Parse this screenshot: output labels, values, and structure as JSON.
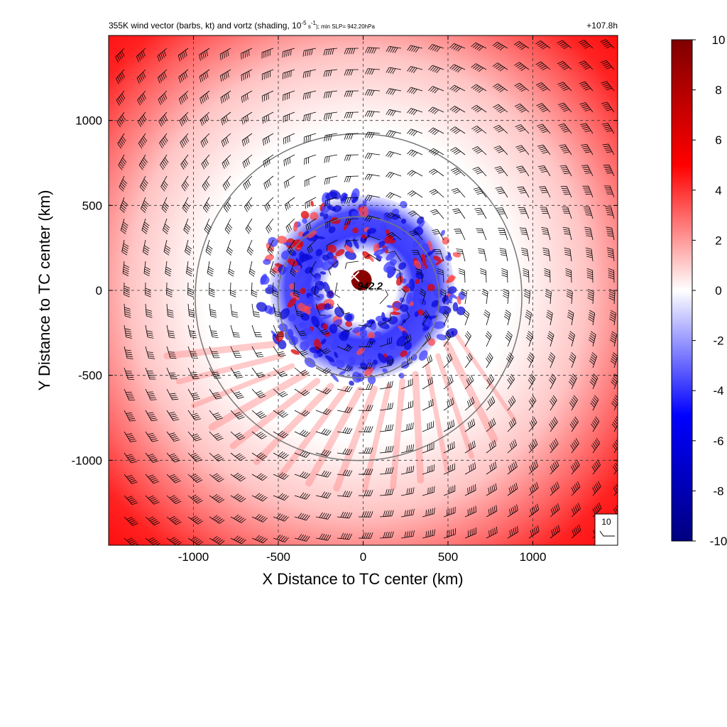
{
  "chart_data": {
    "type": "heatmap",
    "title_parts": {
      "prefix": "355K wind vector (barbs, kt) and vortz (shading, 10",
      "exp": "-5",
      "mid": " s",
      "exp2": "-1",
      "suffix": "); min SLP= 942.20hPa"
    },
    "time_label": "+107.8h",
    "xlabel": "X Distance to TC center (km)",
    "ylabel": "Y Distance to TC center (km)",
    "xlim": [
      -1500,
      1500
    ],
    "ylim": [
      -1500,
      1500
    ],
    "xticks": [
      {
        "value": -1000,
        "label": "-1000"
      },
      {
        "value": -500,
        "label": "-500"
      },
      {
        "value": 0,
        "label": "0"
      },
      {
        "value": 500,
        "label": "500"
      },
      {
        "value": 1000,
        "label": "1000"
      }
    ],
    "yticks": [
      {
        "value": 1000,
        "label": "1000"
      },
      {
        "value": 500,
        "label": "500"
      },
      {
        "value": 0,
        "label": "0"
      },
      {
        "value": -500,
        "label": "-500"
      },
      {
        "value": -1000,
        "label": "-1000"
      }
    ],
    "grid": true,
    "colorbar": {
      "min": -10,
      "max": 10,
      "colors": [
        "#00007f",
        "#0000ff",
        "#ffffff",
        "#ff0000",
        "#7f0000"
      ],
      "ticks": [
        {
          "value": 10,
          "label": "10"
        },
        {
          "value": 8,
          "label": "8"
        },
        {
          "value": 6,
          "label": "6"
        },
        {
          "value": 4,
          "label": "4"
        },
        {
          "value": 2,
          "label": "2"
        },
        {
          "value": 0,
          "label": "0"
        },
        {
          "value": -2,
          "label": "-2"
        },
        {
          "value": -4,
          "label": "-4"
        },
        {
          "value": -6,
          "label": "-6"
        },
        {
          "value": -8,
          "label": "-8"
        },
        {
          "value": -10,
          "label": "-10"
        }
      ]
    },
    "range_circles_km": [
      500,
      1000
    ],
    "center_marker": {
      "x": -20,
      "y": 40,
      "label": "942.2"
    },
    "core_vorticity_region": {
      "x": -10,
      "y": 60,
      "radius_km": 110,
      "value": 10
    },
    "reference_barb": {
      "speed_kt": 10,
      "label": "10"
    }
  }
}
